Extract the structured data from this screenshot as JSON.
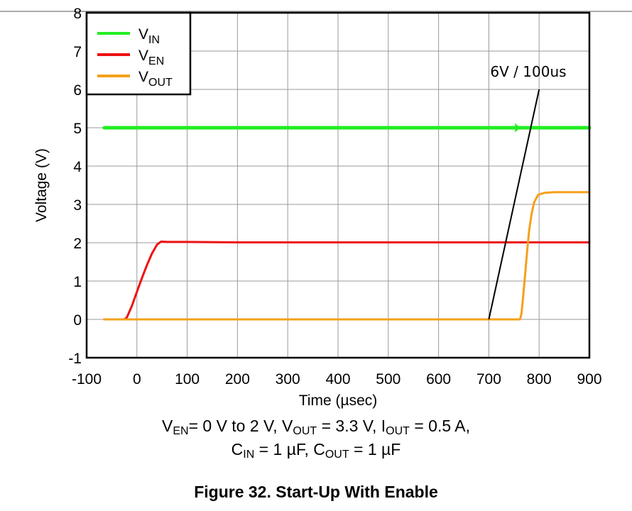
{
  "chart_data": {
    "type": "line",
    "title": "",
    "xlabel": "Time (µsec)",
    "ylabel": "Voltage (V)",
    "xlim": [
      -100,
      900
    ],
    "ylim": [
      -1,
      8
    ],
    "x_ticks": [
      -100,
      0,
      100,
      200,
      300,
      400,
      500,
      600,
      700,
      800,
      900
    ],
    "y_ticks": [
      -1,
      0,
      1,
      2,
      3,
      4,
      5,
      6,
      7,
      8
    ],
    "grid": true,
    "legend_position": "top-left",
    "series": [
      {
        "name": "VIN",
        "name_main": "V",
        "name_sub": "IN",
        "color": "#22ee22",
        "x": [
          -65,
          0,
          100,
          200,
          300,
          400,
          500,
          600,
          700,
          750,
          800,
          900
        ],
        "y": [
          5.0,
          5.0,
          5.0,
          5.0,
          5.0,
          5.0,
          5.0,
          5.0,
          5.0,
          5.0,
          5.0,
          5.0
        ]
      },
      {
        "name": "VEN",
        "name_main": "V",
        "name_sub": "EN",
        "color": "#ee1111",
        "x": [
          -65,
          -25,
          -20,
          -10,
          0,
          10,
          20,
          30,
          40,
          48,
          60,
          100,
          200,
          300,
          400,
          500,
          600,
          700,
          800,
          900
        ],
        "y": [
          0.0,
          0.0,
          0.05,
          0.35,
          0.72,
          1.08,
          1.42,
          1.72,
          1.95,
          2.03,
          2.02,
          2.02,
          2.01,
          2.01,
          2.01,
          2.01,
          2.01,
          2.01,
          2.01,
          2.01
        ]
      },
      {
        "name": "VOUT",
        "name_main": "V",
        "name_sub": "OUT",
        "color": "#f5a01a",
        "x": [
          -65,
          0,
          100,
          200,
          300,
          400,
          500,
          600,
          700,
          762,
          765,
          768,
          772,
          776,
          780,
          785,
          790,
          798,
          810,
          830,
          900
        ],
        "y": [
          0.0,
          0.0,
          0.0,
          0.0,
          0.0,
          0.0,
          0.0,
          0.0,
          0.0,
          0.0,
          0.15,
          0.55,
          1.15,
          1.75,
          2.3,
          2.75,
          3.05,
          3.25,
          3.3,
          3.32,
          3.32
        ]
      }
    ],
    "annotations": [
      {
        "text": "6V / 100us",
        "line_from": [
          700,
          0
        ],
        "line_to": [
          800,
          6
        ]
      }
    ]
  },
  "caption": {
    "line1": [
      {
        "t": "V"
      },
      {
        "t": "EN",
        "sub": true
      },
      {
        "t": "= 0 V to 2 V, V"
      },
      {
        "t": "OUT",
        "sub": true
      },
      {
        "t": " = 3.3 V, I"
      },
      {
        "t": "OUT",
        "sub": true
      },
      {
        "t": " = 0.5 A,"
      }
    ],
    "line2": [
      {
        "t": "C"
      },
      {
        "t": "IN",
        "sub": true
      },
      {
        "t": " = 1 µF, C"
      },
      {
        "t": "OUT",
        "sub": true
      },
      {
        "t": " = 1 µF"
      }
    ]
  },
  "figure_title": "Figure 32. Start-Up With Enable"
}
